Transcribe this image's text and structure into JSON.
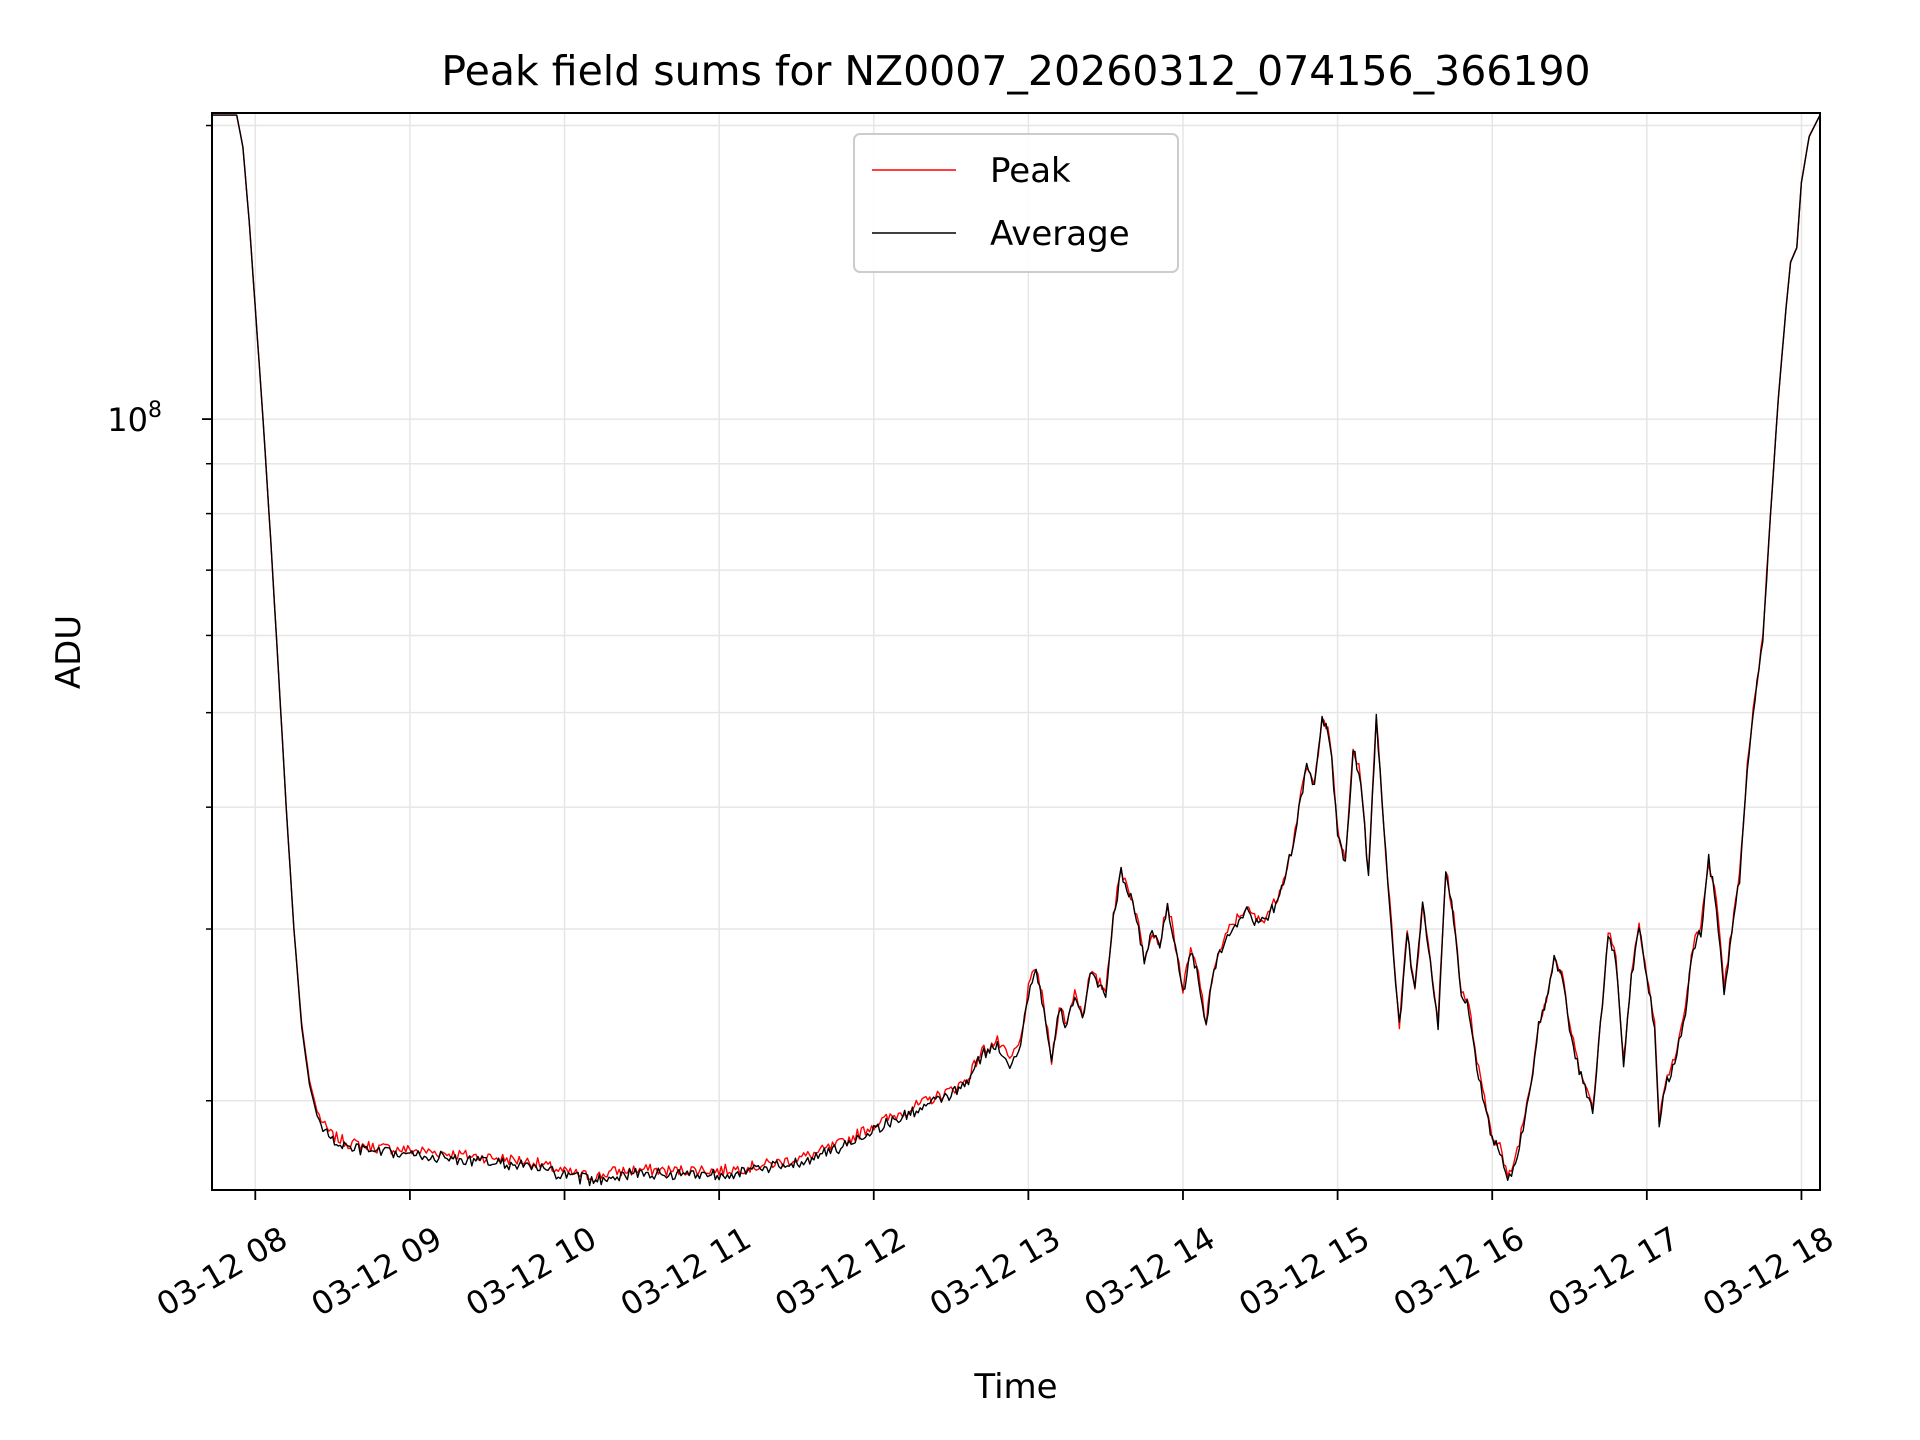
{
  "chart_data": {
    "type": "line",
    "title": "Peak field sums for NZ0007_20260312_074156_366190",
    "xlabel": "Time",
    "ylabel": "ADU",
    "y_scale": "log",
    "grid": true,
    "legend_position": "top-center",
    "xlim": [
      7.72,
      18.12
    ],
    "ylim": [
      16200000,
      206000000
    ],
    "x_ticks": [
      {
        "value": 8,
        "label": "03-12 08"
      },
      {
        "value": 9,
        "label": "03-12 09"
      },
      {
        "value": 10,
        "label": "03-12 10"
      },
      {
        "value": 11,
        "label": "03-12 11"
      },
      {
        "value": 12,
        "label": "03-12 12"
      },
      {
        "value": 13,
        "label": "03-12 13"
      },
      {
        "value": 14,
        "label": "03-12 14"
      },
      {
        "value": 15,
        "label": "03-12 15"
      },
      {
        "value": 16,
        "label": "03-12 16"
      },
      {
        "value": 17,
        "label": "03-12 17"
      },
      {
        "value": 18,
        "label": "03-12 18"
      }
    ],
    "y_major_ticks": [
      {
        "value": 100000000,
        "base": "10",
        "exp": "8"
      }
    ],
    "y_minor_ticks": [
      20000000,
      30000000,
      40000000,
      50000000,
      60000000,
      70000000,
      80000000,
      90000000,
      200000000
    ],
    "x_units": "hour of day (2026-03-12)",
    "series": [
      {
        "name": "Peak",
        "color": "#ff0000",
        "points": [
          [
            7.72,
            205000000
          ],
          [
            7.88,
            205000000
          ],
          [
            7.92,
            190000000
          ],
          [
            7.96,
            160000000
          ],
          [
            8.0,
            130000000
          ],
          [
            8.05,
            100000000
          ],
          [
            8.1,
            75000000
          ],
          [
            8.15,
            55000000
          ],
          [
            8.2,
            40000000
          ],
          [
            8.25,
            30000000
          ],
          [
            8.3,
            24000000
          ],
          [
            8.35,
            21000000
          ],
          [
            8.4,
            19500000
          ],
          [
            8.45,
            18800000
          ],
          [
            8.5,
            18400000
          ],
          [
            8.6,
            18100000
          ],
          [
            8.8,
            17900000
          ],
          [
            9.0,
            17800000
          ],
          [
            9.2,
            17700000
          ],
          [
            9.4,
            17550000
          ],
          [
            9.6,
            17450000
          ],
          [
            9.8,
            17300000
          ],
          [
            10.0,
            16900000
          ],
          [
            10.1,
            16800000
          ],
          [
            10.2,
            16700000
          ],
          [
            10.3,
            16900000
          ],
          [
            10.5,
            17000000
          ],
          [
            10.7,
            16950000
          ],
          [
            10.9,
            17000000
          ],
          [
            11.0,
            16950000
          ],
          [
            11.2,
            17100000
          ],
          [
            11.4,
            17300000
          ],
          [
            11.6,
            17600000
          ],
          [
            11.8,
            18100000
          ],
          [
            12.0,
            18900000
          ],
          [
            12.2,
            19500000
          ],
          [
            12.35,
            20000000
          ],
          [
            12.5,
            20500000
          ],
          [
            12.6,
            21000000
          ],
          [
            12.7,
            22500000
          ],
          [
            12.8,
            23000000
          ],
          [
            12.88,
            22000000
          ],
          [
            12.95,
            23000000
          ],
          [
            13.0,
            26000000
          ],
          [
            13.05,
            27500000
          ],
          [
            13.1,
            25000000
          ],
          [
            13.15,
            22000000
          ],
          [
            13.2,
            25000000
          ],
          [
            13.25,
            24000000
          ],
          [
            13.3,
            26000000
          ],
          [
            13.35,
            24500000
          ],
          [
            13.4,
            27000000
          ],
          [
            13.45,
            26500000
          ],
          [
            13.5,
            26000000
          ],
          [
            13.55,
            31000000
          ],
          [
            13.6,
            34500000
          ],
          [
            13.65,
            33000000
          ],
          [
            13.7,
            31000000
          ],
          [
            13.75,
            28000000
          ],
          [
            13.8,
            30000000
          ],
          [
            13.85,
            29000000
          ],
          [
            13.9,
            32000000
          ],
          [
            13.95,
            29000000
          ],
          [
            14.0,
            26000000
          ],
          [
            14.05,
            28500000
          ],
          [
            14.1,
            27000000
          ],
          [
            14.15,
            24000000
          ],
          [
            14.2,
            27500000
          ],
          [
            14.3,
            30000000
          ],
          [
            14.4,
            31500000
          ],
          [
            14.5,
            30500000
          ],
          [
            14.6,
            32000000
          ],
          [
            14.7,
            36000000
          ],
          [
            14.75,
            40000000
          ],
          [
            14.8,
            44000000
          ],
          [
            14.85,
            42000000
          ],
          [
            14.9,
            50000000
          ],
          [
            14.95,
            47000000
          ],
          [
            15.0,
            38000000
          ],
          [
            15.05,
            35000000
          ],
          [
            15.1,
            46000000
          ],
          [
            15.15,
            43000000
          ],
          [
            15.2,
            34000000
          ],
          [
            15.25,
            50000000
          ],
          [
            15.3,
            38000000
          ],
          [
            15.35,
            30000000
          ],
          [
            15.4,
            24000000
          ],
          [
            15.45,
            30000000
          ],
          [
            15.5,
            26000000
          ],
          [
            15.55,
            32000000
          ],
          [
            15.6,
            28000000
          ],
          [
            15.65,
            24000000
          ],
          [
            15.7,
            34500000
          ],
          [
            15.75,
            31000000
          ],
          [
            15.8,
            26000000
          ],
          [
            15.85,
            25000000
          ],
          [
            15.9,
            22000000
          ],
          [
            15.95,
            20000000
          ],
          [
            16.0,
            18500000
          ],
          [
            16.05,
            18000000
          ],
          [
            16.1,
            16600000
          ],
          [
            16.15,
            17500000
          ],
          [
            16.2,
            19000000
          ],
          [
            16.25,
            21000000
          ],
          [
            16.3,
            24000000
          ],
          [
            16.35,
            25500000
          ],
          [
            16.4,
            28000000
          ],
          [
            16.45,
            27000000
          ],
          [
            16.5,
            24000000
          ],
          [
            16.55,
            22000000
          ],
          [
            16.6,
            21000000
          ],
          [
            16.65,
            19500000
          ],
          [
            16.7,
            24000000
          ],
          [
            16.75,
            30000000
          ],
          [
            16.8,
            28000000
          ],
          [
            16.85,
            22000000
          ],
          [
            16.9,
            27000000
          ],
          [
            16.95,
            30500000
          ],
          [
            17.0,
            27000000
          ],
          [
            17.05,
            24000000
          ],
          [
            17.08,
            19000000
          ],
          [
            17.12,
            21000000
          ],
          [
            17.18,
            22000000
          ],
          [
            17.25,
            25000000
          ],
          [
            17.3,
            29000000
          ],
          [
            17.35,
            30000000
          ],
          [
            17.4,
            35500000
          ],
          [
            17.45,
            32000000
          ],
          [
            17.5,
            26000000
          ],
          [
            17.55,
            30000000
          ],
          [
            17.6,
            34000000
          ],
          [
            17.65,
            44000000
          ],
          [
            17.7,
            52000000
          ],
          [
            17.75,
            60000000
          ],
          [
            17.8,
            80000000
          ],
          [
            17.85,
            105000000
          ],
          [
            17.9,
            130000000
          ],
          [
            17.93,
            145000000
          ],
          [
            17.97,
            150000000
          ],
          [
            18.0,
            175000000
          ],
          [
            18.05,
            195000000
          ],
          [
            18.12,
            205000000
          ]
        ]
      },
      {
        "name": "Average",
        "color": "#000000",
        "points": [
          [
            7.72,
            205000000
          ],
          [
            7.88,
            205000000
          ],
          [
            7.92,
            190000000
          ],
          [
            7.96,
            160000000
          ],
          [
            8.0,
            130000000
          ],
          [
            8.05,
            100000000
          ],
          [
            8.1,
            75000000
          ],
          [
            8.15,
            55000000
          ],
          [
            8.2,
            40000000
          ],
          [
            8.25,
            30000000
          ],
          [
            8.3,
            23800000
          ],
          [
            8.35,
            20800000
          ],
          [
            8.4,
            19300000
          ],
          [
            8.45,
            18600000
          ],
          [
            8.5,
            18200000
          ],
          [
            8.6,
            17900000
          ],
          [
            8.8,
            17700000
          ],
          [
            9.0,
            17600000
          ],
          [
            9.2,
            17500000
          ],
          [
            9.4,
            17350000
          ],
          [
            9.6,
            17250000
          ],
          [
            9.8,
            17100000
          ],
          [
            10.0,
            16750000
          ],
          [
            10.1,
            16650000
          ],
          [
            10.2,
            16550000
          ],
          [
            10.3,
            16750000
          ],
          [
            10.5,
            16850000
          ],
          [
            10.7,
            16800000
          ],
          [
            10.9,
            16850000
          ],
          [
            11.0,
            16800000
          ],
          [
            11.2,
            16950000
          ],
          [
            11.4,
            17150000
          ],
          [
            11.6,
            17450000
          ],
          [
            11.8,
            17950000
          ],
          [
            12.0,
            18700000
          ],
          [
            12.2,
            19300000
          ],
          [
            12.35,
            19800000
          ],
          [
            12.5,
            20300000
          ],
          [
            12.6,
            20800000
          ],
          [
            12.7,
            22300000
          ],
          [
            12.8,
            22800000
          ],
          [
            12.88,
            21800000
          ],
          [
            12.95,
            22800000
          ],
          [
            13.0,
            25800000
          ],
          [
            13.05,
            27300000
          ],
          [
            13.1,
            24800000
          ],
          [
            13.15,
            21800000
          ],
          [
            13.2,
            24800000
          ],
          [
            13.25,
            23800000
          ],
          [
            13.3,
            25800000
          ],
          [
            13.35,
            24300000
          ],
          [
            13.4,
            26800000
          ],
          [
            13.45,
            26300000
          ],
          [
            13.5,
            25800000
          ],
          [
            13.55,
            30800000
          ],
          [
            13.6,
            34300000
          ],
          [
            13.65,
            32800000
          ],
          [
            13.7,
            30800000
          ],
          [
            13.75,
            27800000
          ],
          [
            13.8,
            29800000
          ],
          [
            13.85,
            28800000
          ],
          [
            13.9,
            31800000
          ],
          [
            13.95,
            28800000
          ],
          [
            14.0,
            25800000
          ],
          [
            14.05,
            28300000
          ],
          [
            14.1,
            26800000
          ],
          [
            14.15,
            23800000
          ],
          [
            14.2,
            27300000
          ],
          [
            14.3,
            29800000
          ],
          [
            14.4,
            31300000
          ],
          [
            14.5,
            30300000
          ],
          [
            14.6,
            31800000
          ],
          [
            14.7,
            35800000
          ],
          [
            14.75,
            39800000
          ],
          [
            14.8,
            43800000
          ],
          [
            14.85,
            41800000
          ],
          [
            14.9,
            49800000
          ],
          [
            14.95,
            46800000
          ],
          [
            15.0,
            37800000
          ],
          [
            15.05,
            34800000
          ],
          [
            15.1,
            45800000
          ],
          [
            15.15,
            42800000
          ],
          [
            15.2,
            33800000
          ],
          [
            15.25,
            49500000
          ],
          [
            15.3,
            37800000
          ],
          [
            15.35,
            29800000
          ],
          [
            15.4,
            23800000
          ],
          [
            15.45,
            29800000
          ],
          [
            15.5,
            25800000
          ],
          [
            15.55,
            31800000
          ],
          [
            15.6,
            27800000
          ],
          [
            15.65,
            23800000
          ],
          [
            15.7,
            34300000
          ],
          [
            15.75,
            30800000
          ],
          [
            15.8,
            25800000
          ],
          [
            15.85,
            24800000
          ],
          [
            15.9,
            21800000
          ],
          [
            15.95,
            19800000
          ],
          [
            16.0,
            18300000
          ],
          [
            16.05,
            17800000
          ],
          [
            16.1,
            16500000
          ],
          [
            16.15,
            17300000
          ],
          [
            16.2,
            18800000
          ],
          [
            16.25,
            20800000
          ],
          [
            16.3,
            23800000
          ],
          [
            16.35,
            25300000
          ],
          [
            16.4,
            27800000
          ],
          [
            16.45,
            26800000
          ],
          [
            16.5,
            23800000
          ],
          [
            16.55,
            21800000
          ],
          [
            16.6,
            20800000
          ],
          [
            16.65,
            19300000
          ],
          [
            16.7,
            23800000
          ],
          [
            16.75,
            29800000
          ],
          [
            16.8,
            27800000
          ],
          [
            16.85,
            21800000
          ],
          [
            16.9,
            26800000
          ],
          [
            16.95,
            30300000
          ],
          [
            17.0,
            26800000
          ],
          [
            17.05,
            23800000
          ],
          [
            17.08,
            18800000
          ],
          [
            17.12,
            20800000
          ],
          [
            17.18,
            21800000
          ],
          [
            17.25,
            24800000
          ],
          [
            17.3,
            28800000
          ],
          [
            17.35,
            29800000
          ],
          [
            17.4,
            35300000
          ],
          [
            17.45,
            31800000
          ],
          [
            17.5,
            25800000
          ],
          [
            17.55,
            29800000
          ],
          [
            17.6,
            33800000
          ],
          [
            17.65,
            43800000
          ],
          [
            17.7,
            51800000
          ],
          [
            17.75,
            59800000
          ],
          [
            17.8,
            79800000
          ],
          [
            17.85,
            104800000
          ],
          [
            17.9,
            129800000
          ],
          [
            17.93,
            144800000
          ],
          [
            17.97,
            149800000
          ],
          [
            18.0,
            174800000
          ],
          [
            18.05,
            194800000
          ],
          [
            18.12,
            205000000
          ]
        ]
      }
    ]
  }
}
